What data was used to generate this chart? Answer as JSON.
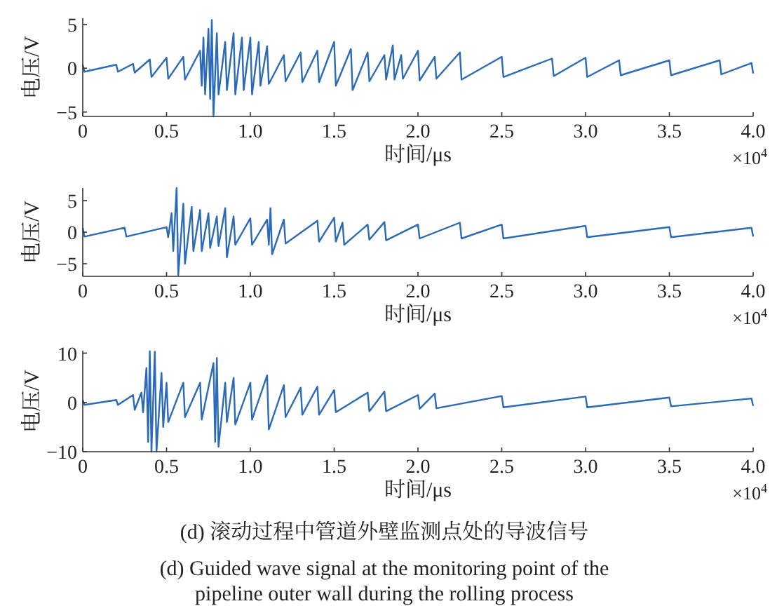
{
  "chart_data": [
    {
      "type": "line",
      "xlabel": "时间/μs",
      "ylabel": "电压/V",
      "annotations": [
        "×10$^{4}$"
      ],
      "xlim": [
        0,
        4
      ],
      "ylim": [
        -5.5,
        5.7
      ],
      "xticks": [
        {
          "value": 0,
          "label": "0"
        },
        {
          "value": 0.5,
          "label": "0.5"
        },
        {
          "value": 1,
          "label": "1.0"
        },
        {
          "value": 1.5,
          "label": "1.5"
        },
        {
          "value": 2,
          "label": "2.0"
        },
        {
          "value": 2.5,
          "label": "2.5"
        },
        {
          "value": 3,
          "label": "3.0"
        },
        {
          "value": 3.5,
          "label": "3.5"
        },
        {
          "value": 4,
          "label": "4.0"
        }
      ],
      "yticks": [
        -5,
        0,
        5
      ],
      "series": [
        {
          "color": "#2a6ab8",
          "x": [
            0,
            0.01,
            0.2,
            0.21,
            0.3,
            0.31,
            0.4,
            0.41,
            0.5,
            0.51,
            0.6,
            0.61,
            0.7,
            0.71,
            0.72,
            0.73,
            0.75,
            0.76,
            0.77,
            0.78,
            0.8,
            0.81,
            0.85,
            0.86,
            0.9,
            0.91,
            0.95,
            0.96,
            1.0,
            1.01,
            1.05,
            1.06,
            1.1,
            1.11,
            1.2,
            1.21,
            1.3,
            1.31,
            1.4,
            1.41,
            1.5,
            1.51,
            1.6,
            1.61,
            1.7,
            1.71,
            1.8,
            1.81,
            1.85,
            1.86,
            1.9,
            1.91,
            2.0,
            2.01,
            2.1,
            2.11,
            2.25,
            2.26,
            2.5,
            2.51,
            2.8,
            2.81,
            3.0,
            3.01,
            3.2,
            3.21,
            3.5,
            3.51,
            3.8,
            3.81,
            3.99,
            4.0
          ],
          "values": [
            0.4,
            -0.4,
            0.4,
            -0.4,
            0.5,
            -0.5,
            1,
            -1,
            1.2,
            -1.2,
            1.3,
            -1.3,
            2,
            -2,
            3.5,
            -3,
            4.5,
            -3.5,
            5.5,
            -5.5,
            4,
            -3,
            3,
            -2.5,
            4,
            -3,
            3.5,
            -2.5,
            3.5,
            -3,
            3,
            -2,
            2.5,
            -1.8,
            1.5,
            -1.5,
            1.8,
            -1.6,
            2,
            -1.6,
            3,
            -2,
            2.2,
            -2.5,
            1.8,
            -1.5,
            1.5,
            -1.3,
            2.6,
            -1.3,
            1.5,
            -1.2,
            2,
            -1.4,
            1.3,
            -1.2,
            1.8,
            -1.3,
            1.3,
            -1,
            1.1,
            -0.9,
            1.2,
            -1,
            0.9,
            -0.8,
            0.9,
            -0.8,
            0.9,
            -0.7,
            0.6,
            -0.6
          ]
        }
      ]
    },
    {
      "type": "line",
      "xlabel": "时间/μs",
      "ylabel": "电压/V",
      "annotations": [
        "×10$^{4}$"
      ],
      "xlim": [
        0,
        4
      ],
      "ylim": [
        -7,
        7
      ],
      "xticks": [
        {
          "value": 0,
          "label": "0"
        },
        {
          "value": 0.5,
          "label": "0.5"
        },
        {
          "value": 1,
          "label": "1.0"
        },
        {
          "value": 1.5,
          "label": "1.5"
        },
        {
          "value": 2,
          "label": "2.0"
        },
        {
          "value": 2.5,
          "label": "2.5"
        },
        {
          "value": 3,
          "label": "3.0"
        },
        {
          "value": 3.5,
          "label": "3.5"
        },
        {
          "value": 4,
          "label": "4.0"
        }
      ],
      "yticks": [
        -5,
        0,
        5
      ],
      "series": [
        {
          "color": "#2a6ab8",
          "x": [
            0,
            0.01,
            0.25,
            0.26,
            0.5,
            0.51,
            0.53,
            0.54,
            0.56,
            0.57,
            0.6,
            0.61,
            0.65,
            0.66,
            0.7,
            0.71,
            0.75,
            0.76,
            0.8,
            0.81,
            0.85,
            0.86,
            0.9,
            0.91,
            1.0,
            1.01,
            1.1,
            1.11,
            1.12,
            1.13,
            1.2,
            1.21,
            1.4,
            1.41,
            1.5,
            1.51,
            1.55,
            1.56,
            1.7,
            1.71,
            1.8,
            1.81,
            2.0,
            2.01,
            2.25,
            2.26,
            2.5,
            2.51,
            3.0,
            3.01,
            3.5,
            3.51,
            3.99,
            4.0
          ],
          "values": [
            0.7,
            -0.7,
            0.7,
            -0.7,
            0.8,
            -0.8,
            3,
            -3,
            7,
            -6.8,
            4.5,
            -5,
            4,
            -3,
            3.5,
            -3,
            3,
            -2.5,
            2.5,
            -2.2,
            3.8,
            -4,
            2.5,
            -2,
            2.2,
            -2,
            2,
            -2,
            3.8,
            -3.5,
            2,
            -1.8,
            1.8,
            -1.5,
            2.3,
            -1.5,
            1.5,
            -2,
            1.2,
            -1.2,
            1.6,
            -1.3,
            1.2,
            -1,
            1.5,
            -1,
            1.2,
            -1,
            1,
            -0.8,
            0.8,
            -0.8,
            0.7,
            -0.7
          ]
        }
      ]
    },
    {
      "type": "line",
      "xlabel": "时间/μs",
      "ylabel": "电压/V",
      "annotations": [
        "×10$^{4}$",
        "(d) 滚动过程中管道外壁监测点处的导波信号",
        "(d) Guided wave signal at the monitoring point of the pipeline outer wall during the rolling process"
      ],
      "xlim": [
        0,
        4
      ],
      "ylim": [
        -10,
        10.5
      ],
      "xticks": [
        {
          "value": 0,
          "label": "0"
        },
        {
          "value": 0.5,
          "label": "0.5"
        },
        {
          "value": 1,
          "label": "1.0"
        },
        {
          "value": 1.5,
          "label": "1.5"
        },
        {
          "value": 2,
          "label": "2.0"
        },
        {
          "value": 2.5,
          "label": "2.5"
        },
        {
          "value": 3,
          "label": "3.0"
        },
        {
          "value": 3.5,
          "label": "3.5"
        },
        {
          "value": 4,
          "label": "4.0"
        }
      ],
      "yticks": [
        -10,
        0,
        10
      ],
      "series": [
        {
          "color": "#2a6ab8",
          "x": [
            0,
            0.01,
            0.2,
            0.21,
            0.3,
            0.31,
            0.35,
            0.36,
            0.38,
            0.39,
            0.4,
            0.41,
            0.43,
            0.44,
            0.47,
            0.48,
            0.5,
            0.51,
            0.6,
            0.61,
            0.7,
            0.71,
            0.78,
            0.79,
            0.8,
            0.81,
            0.85,
            0.86,
            0.9,
            0.91,
            1.0,
            1.01,
            1.1,
            1.11,
            1.2,
            1.21,
            1.3,
            1.31,
            1.4,
            1.41,
            1.5,
            1.51,
            1.7,
            1.71,
            1.8,
            1.81,
            2.0,
            2.01,
            2.1,
            2.11,
            2.5,
            2.51,
            3.0,
            3.01,
            3.5,
            3.51,
            3.99,
            4.0
          ],
          "values": [
            0.5,
            -0.5,
            0.5,
            -0.5,
            1.5,
            -1.5,
            2,
            -2,
            7,
            -8,
            10.4,
            -10,
            10.3,
            -10,
            6,
            -5,
            4,
            -4,
            4,
            -3,
            4,
            -3.5,
            8,
            -8,
            9,
            -9,
            4,
            -4,
            5,
            -4.5,
            4,
            -3.5,
            5.5,
            -5.5,
            3.5,
            -3,
            3,
            -2.5,
            3.2,
            -2.5,
            2.5,
            -2,
            2,
            -1.8,
            2.2,
            -1.8,
            1.5,
            -1.3,
            1.8,
            -1.2,
            1.3,
            -1,
            1.2,
            -1,
            1,
            -0.8,
            0.8,
            -0.7
          ]
        }
      ]
    }
  ]
}
